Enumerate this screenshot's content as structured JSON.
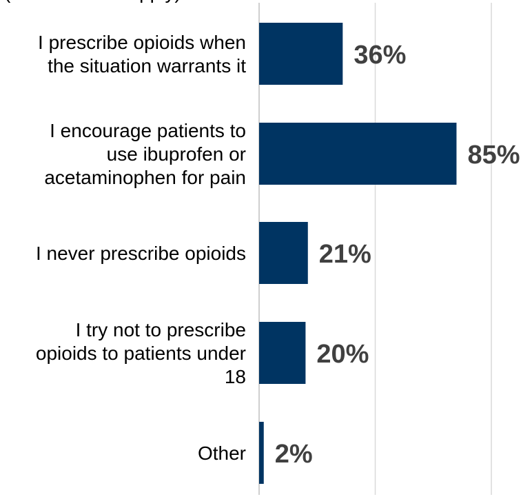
{
  "chart_data": {
    "type": "bar",
    "orientation": "horizontal",
    "categories": [
      [
        "I prescribe opioids when",
        "the situation warrants it"
      ],
      [
        "I encourage patients to",
        "use ibuprofen or",
        "acetaminophen for pain"
      ],
      [
        "I never prescribe opioids"
      ],
      [
        "I try not to prescribe",
        "opioids to patients under",
        "18"
      ],
      [
        "Other"
      ]
    ],
    "values": [
      36,
      85,
      21,
      20,
      2
    ],
    "data_labels": [
      "36%",
      "85%",
      "21%",
      "20%",
      "2%"
    ],
    "xlim": [
      0,
      100
    ],
    "gridlines": [
      50,
      100
    ],
    "grid": true,
    "bar_color": "#003462",
    "data_label_color": "#404040",
    "title_fragment": "(select all that apply)"
  }
}
